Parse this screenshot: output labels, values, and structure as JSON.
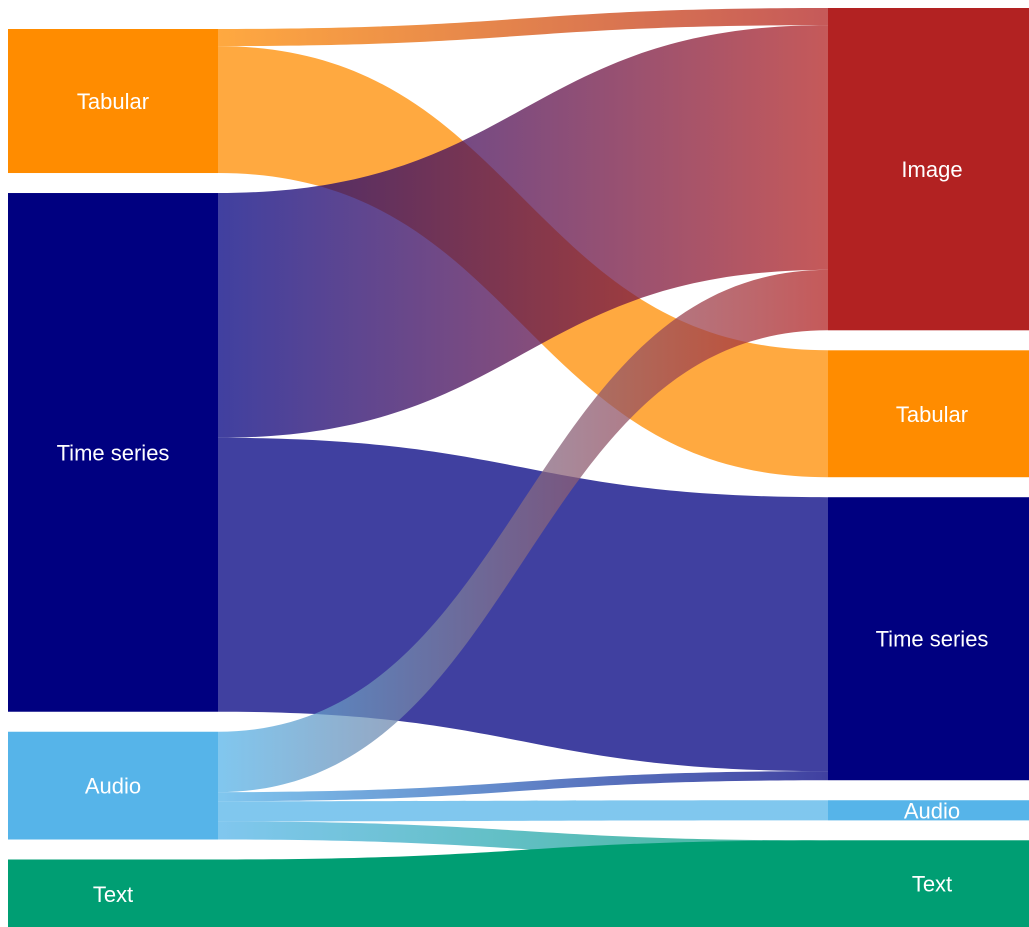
{
  "chart_data": {
    "type": "sankey",
    "title": "",
    "colors": {
      "Image": "#b22222",
      "Tabular": "#ff8c00",
      "Time series": "#000080",
      "Audio": "#56b4e9",
      "Text": "#009e73"
    },
    "left_nodes": [
      {
        "id": "Tabular",
        "label": "Tabular"
      },
      {
        "id": "Time series",
        "label": "Time series"
      },
      {
        "id": "Audio",
        "label": "Audio"
      },
      {
        "id": "Text",
        "label": "Text"
      }
    ],
    "right_nodes": [
      {
        "id": "Image",
        "label": "Image"
      },
      {
        "id": "Tabular",
        "label": "Tabular"
      },
      {
        "id": "Time series",
        "label": "Time series"
      },
      {
        "id": "Audio",
        "label": "Audio"
      },
      {
        "id": "Text",
        "label": "Text"
      }
    ],
    "links": [
      {
        "source": "Tabular",
        "target": "Image",
        "value": 17
      },
      {
        "source": "Tabular",
        "target": "Tabular",
        "value": 126
      },
      {
        "source": "Time series",
        "target": "Image",
        "value": 243
      },
      {
        "source": "Time series",
        "target": "Time series",
        "value": 272
      },
      {
        "source": "Audio",
        "target": "Image",
        "value": 60
      },
      {
        "source": "Audio",
        "target": "Time series",
        "value": 9
      },
      {
        "source": "Audio",
        "target": "Audio",
        "value": 20
      },
      {
        "source": "Audio",
        "target": "Text",
        "value": 18
      },
      {
        "source": "Text",
        "target": "Text",
        "value": 68
      }
    ]
  }
}
